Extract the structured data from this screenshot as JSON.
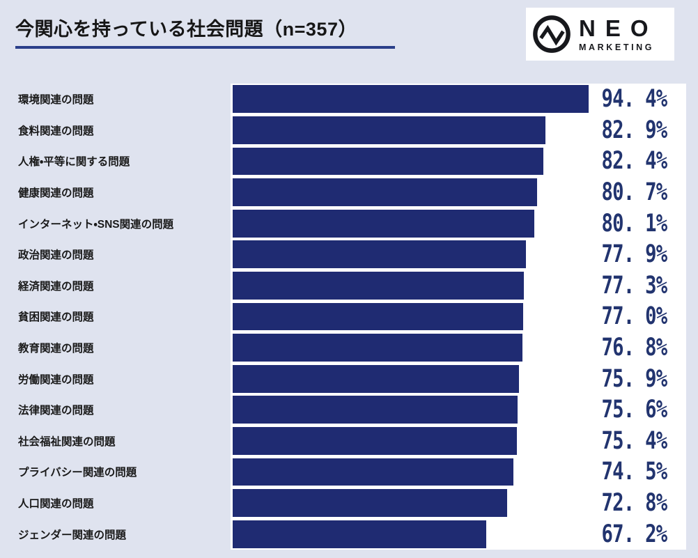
{
  "title": "今関心を持っている社会問題（n=357）",
  "sample_size": 357,
  "logo": {
    "name": "NEO",
    "sub": "MARKETING",
    "mark": "pulse-in-circle-icon"
  },
  "colors": {
    "page_background": "#dfe3ef",
    "plot_background": "#ffffff",
    "bar": "#1f2b72",
    "value_text": "#22346f",
    "title_underline": "#2b3f8a"
  },
  "chart_data": {
    "type": "bar",
    "orientation": "horizontal",
    "title": "今関心を持っている社会問題（n=357）",
    "xlabel": "",
    "ylabel": "",
    "xlim": [
      0,
      100
    ],
    "grid": false,
    "legend": "none",
    "categories": [
      "環境関連の問題",
      "食料関連の問題",
      "人権・平等に関する問題",
      "健康関連の問題",
      "インターネット・SNS関連の問題",
      "政治関連の問題",
      "経済関連の問題",
      "貧困関連の問題",
      "教育関連の問題",
      "労働関連の問題",
      "法律関連の問題",
      "社会福祉関連の問題",
      "プライバシー関連の問題",
      "人口関連の問題",
      "ジェンダー関連の問題"
    ],
    "values": [
      94.4,
      82.9,
      82.4,
      80.7,
      80.1,
      77.9,
      77.3,
      77.0,
      76.8,
      75.9,
      75.6,
      75.4,
      74.5,
      72.8,
      67.2
    ],
    "value_labels": [
      "94. 4%",
      "82. 9%",
      "82. 4%",
      "80. 7%",
      "80. 1%",
      "77. 9%",
      "77. 3%",
      "77. 0%",
      "76. 8%",
      "75. 9%",
      "75. 6%",
      "75. 4%",
      "74. 5%",
      "72. 8%",
      "67. 2%"
    ]
  }
}
